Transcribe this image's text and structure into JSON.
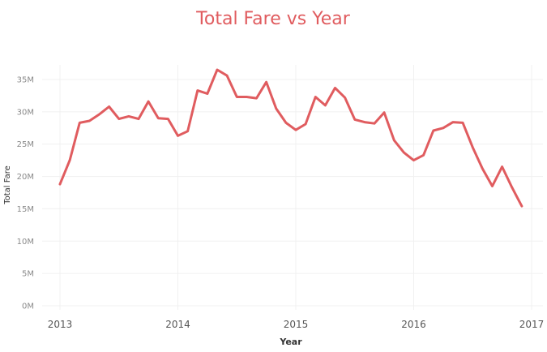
{
  "chart_data": {
    "type": "line",
    "title": "Total Fare vs Year",
    "xlabel": "Year",
    "ylabel": "Total Fare",
    "x_ticks": [
      "2013",
      "2014",
      "2015",
      "2016",
      "2017"
    ],
    "y_ticks": [
      "0M",
      "5M",
      "10M",
      "15M",
      "20M",
      "25M",
      "30M",
      "35M"
    ],
    "y_tick_values": [
      0,
      5,
      10,
      15,
      20,
      25,
      30,
      35
    ],
    "xlim": [
      "2013-01",
      "2017-01"
    ],
    "ylim": [
      0,
      38
    ],
    "grid": true,
    "colors": {
      "series": "#e05c5f",
      "title": "#e05c5f"
    },
    "series": [
      {
        "x": [
          "2013-01",
          "2013-02",
          "2013-03",
          "2013-04",
          "2013-05",
          "2013-06",
          "2013-07",
          "2013-08",
          "2013-09",
          "2013-10",
          "2013-11",
          "2013-12",
          "2014-01",
          "2014-02",
          "2014-03",
          "2014-04",
          "2014-05",
          "2014-06",
          "2014-07",
          "2014-08",
          "2014-09",
          "2014-10",
          "2014-11",
          "2014-12",
          "2015-01",
          "2015-02",
          "2015-03",
          "2015-04",
          "2015-05",
          "2015-06",
          "2015-07",
          "2015-08",
          "2015-09",
          "2015-10",
          "2015-11",
          "2015-12",
          "2016-01",
          "2016-02",
          "2016-03",
          "2016-04",
          "2016-05",
          "2016-06",
          "2016-07",
          "2016-08",
          "2016-09",
          "2016-10",
          "2016-11",
          "2016-12"
        ],
        "values": [
          18.8,
          22.5,
          28.3,
          28.6,
          29.6,
          30.8,
          28.9,
          29.3,
          28.9,
          31.6,
          29.0,
          28.9,
          26.3,
          27.0,
          33.3,
          32.8,
          36.5,
          35.6,
          32.3,
          32.3,
          32.1,
          34.6,
          30.5,
          28.3,
          27.2,
          28.1,
          32.3,
          31.0,
          33.7,
          32.2,
          28.8,
          28.4,
          28.2,
          29.9,
          25.6,
          23.7,
          22.5,
          23.3,
          27.1,
          27.5,
          28.4,
          28.3,
          24.5,
          21.2,
          18.5,
          21.5,
          18.3,
          15.4
        ]
      }
    ]
  }
}
